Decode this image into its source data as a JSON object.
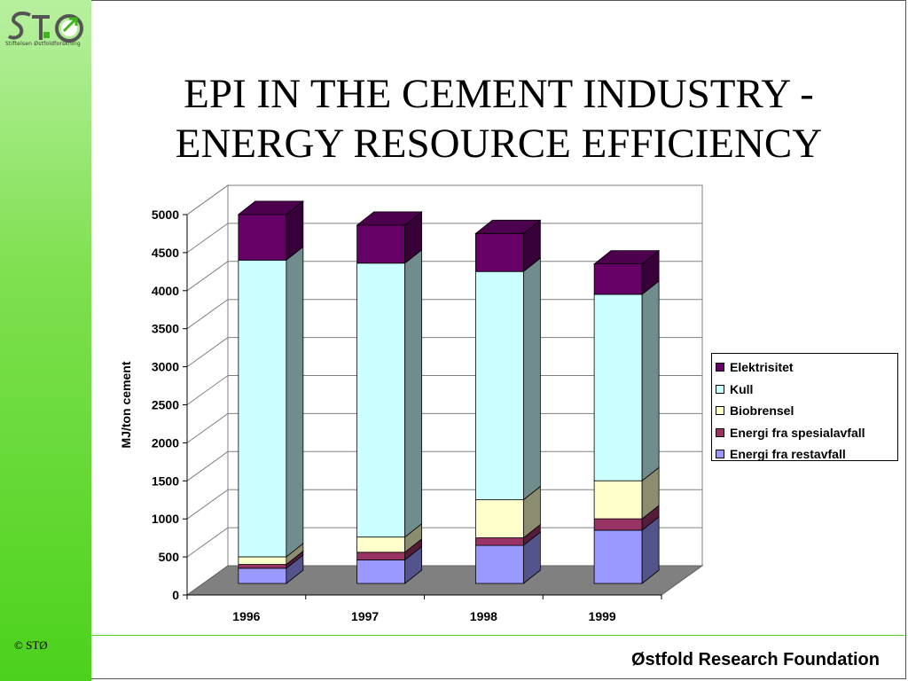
{
  "slide": {
    "title_line1": "EPI IN THE CEMENT INDUSTRY -",
    "title_line2": "ENERGY RESOURCE EFFICIENCY",
    "footer": "Østfold Research Foundation",
    "copyright": "© STØ",
    "logo_text": "STØ",
    "logo_subtitle": "Stiftelsen Østfoldforskning"
  },
  "chart_data": {
    "type": "bar",
    "stacked": true,
    "three_d": true,
    "title": "",
    "xlabel": "",
    "ylabel": "MJ/ton cement",
    "categories": [
      "1996",
      "1997",
      "1998",
      "1999"
    ],
    "ylim": [
      0,
      5000
    ],
    "yticks": [
      0,
      500,
      1000,
      1500,
      2000,
      2500,
      3000,
      3500,
      4000,
      4500,
      5000
    ],
    "grid": true,
    "legend_position": "right",
    "series": [
      {
        "name": "Energi fra restavfall",
        "color": "#9999ff",
        "values": [
          200,
          310,
          500,
          700
        ]
      },
      {
        "name": "Energi fra spesialavfall",
        "color": "#993366",
        "values": [
          50,
          100,
          100,
          150
        ]
      },
      {
        "name": "Biobrensel",
        "color": "#ffffcc",
        "values": [
          100,
          200,
          500,
          500
        ]
      },
      {
        "name": "Kull",
        "color": "#ccffff",
        "values": [
          3900,
          3600,
          3000,
          2450
        ]
      },
      {
        "name": "Elektrisitet",
        "color": "#660066",
        "values": [
          600,
          500,
          500,
          400
        ]
      }
    ]
  }
}
